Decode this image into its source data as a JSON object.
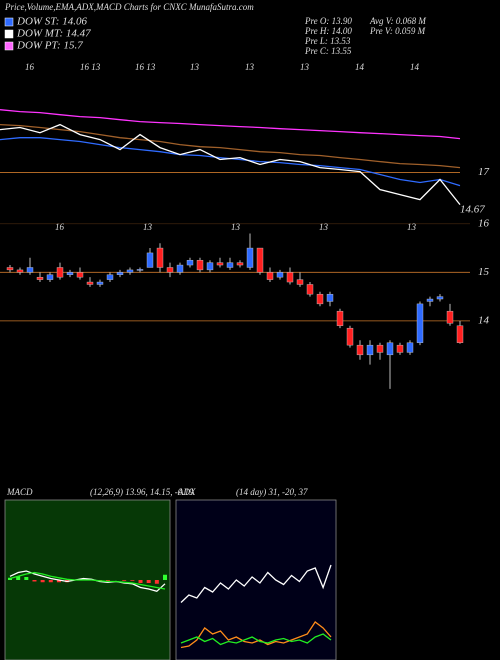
{
  "title": "Price,Volume,EMA,ADX,MACD Charts for CNXC MunafaSutra.com",
  "legend": [
    {
      "label": "DOW ST: 14.06",
      "color": "#2f6bff"
    },
    {
      "label": "DOW MT: 14.47",
      "color": "#ffffff"
    },
    {
      "label": "DOW PT: 15.7",
      "color": "#ff66ff"
    }
  ],
  "stats": [
    "Pre O: 13.90",
    "Pre H: 14.00",
    "Pre L: 13.53",
    "Pre C: 13.55",
    "Avg V: 0.068 M",
    "Pre V: 0.059 M"
  ],
  "chart_data": [
    {
      "type": "line",
      "ylim": [
        14.05,
        24
      ],
      "yticks": [
        17,
        14.67
      ],
      "grid_color": "#c8762a",
      "date_labels": [
        "16",
        "16 13",
        "16 13",
        "13",
        "13",
        "13",
        "14",
        "14"
      ],
      "series": [
        {
          "color": "#ff33ff",
          "values": [
            20.91,
            20.79,
            20.73,
            20.6,
            20.48,
            20.42,
            20.29,
            20.17,
            20.11,
            20.05,
            19.98,
            19.92,
            19.86,
            19.8,
            19.73,
            19.67,
            19.61,
            19.55,
            19.48,
            19.42,
            19.36,
            19.3,
            19.24,
            19.11
          ]
        },
        {
          "color": "#a0602a",
          "values": [
            19.98,
            19.92,
            19.8,
            19.67,
            19.55,
            19.36,
            19.17,
            19.05,
            18.93,
            18.74,
            18.61,
            18.55,
            18.43,
            18.3,
            18.24,
            18.12,
            18.06,
            17.93,
            17.81,
            17.68,
            17.56,
            17.5,
            17.43,
            17.31
          ]
        },
        {
          "color": "#2f6bff",
          "values": [
            19.05,
            19.17,
            19.17,
            19.05,
            18.93,
            18.74,
            18.55,
            18.43,
            18.3,
            18.12,
            18.06,
            17.93,
            17.81,
            17.68,
            17.62,
            17.5,
            17.43,
            17.31,
            17.19,
            16.88,
            16.57,
            16.38,
            16.57,
            16.19
          ]
        },
        {
          "color": "#ffffff",
          "values": [
            19.67,
            19.8,
            19.48,
            19.98,
            19.36,
            19.05,
            18.43,
            19.36,
            18.55,
            18.12,
            18.43,
            17.81,
            17.93,
            17.5,
            17.81,
            17.68,
            17.31,
            17.19,
            17.06,
            15.94,
            15.63,
            15.32,
            16.57,
            15.01
          ]
        }
      ]
    },
    {
      "type": "candlestick",
      "ylim": [
        12.37,
        16.49
      ],
      "yticks": [
        16,
        15,
        14
      ],
      "grid_color": "#c8762a",
      "up_color": "#2f6bff",
      "down_color": "#ff2020",
      "date_labels": [
        "16",
        "13",
        "13",
        "13",
        "13"
      ],
      "open": [
        15.1,
        15.05,
        15.0,
        14.9,
        14.85,
        15.1,
        14.95,
        15.0,
        14.8,
        14.75,
        14.85,
        14.95,
        15.0,
        15.05,
        15.1,
        15.5,
        15.1,
        15.0,
        15.15,
        15.25,
        15.05,
        15.2,
        15.1,
        15.2,
        15.1,
        15.5,
        15.0,
        14.9,
        15.0,
        14.85,
        14.75,
        14.55,
        14.4,
        14.2,
        13.85,
        13.5,
        13.3,
        13.5,
        13.3,
        13.5,
        13.35,
        13.55,
        14.4,
        14.45,
        14.2,
        13.9
      ],
      "high": [
        15.15,
        15.1,
        15.3,
        15.0,
        15.0,
        15.2,
        15.05,
        15.1,
        14.9,
        14.85,
        15.0,
        15.05,
        15.1,
        15.1,
        15.5,
        15.6,
        15.2,
        15.2,
        15.3,
        15.3,
        15.25,
        15.3,
        15.3,
        15.25,
        15.8,
        15.5,
        15.1,
        15.05,
        15.1,
        15.0,
        14.8,
        14.6,
        14.6,
        14.25,
        13.9,
        13.6,
        13.6,
        13.55,
        13.6,
        13.55,
        13.6,
        14.4,
        14.5,
        14.55,
        14.35,
        14.0
      ],
      "low": [
        15.0,
        14.95,
        14.95,
        14.8,
        14.8,
        14.85,
        14.9,
        14.85,
        14.7,
        14.7,
        14.8,
        14.9,
        14.95,
        15.0,
        15.1,
        15.0,
        14.9,
        14.95,
        15.1,
        15.0,
        15.0,
        15.1,
        15.05,
        15.1,
        15.05,
        14.95,
        14.8,
        14.85,
        14.75,
        14.7,
        14.5,
        14.3,
        14.3,
        13.85,
        13.45,
        13.2,
        13.1,
        13.2,
        12.6,
        13.3,
        13.3,
        13.5,
        14.3,
        14.4,
        13.9,
        13.53
      ],
      "close": [
        15.05,
        15.0,
        15.1,
        14.85,
        14.95,
        14.9,
        15.0,
        14.9,
        14.75,
        14.8,
        14.95,
        15.0,
        15.05,
        15.06,
        15.4,
        15.1,
        15.0,
        15.15,
        15.25,
        15.05,
        15.2,
        15.15,
        15.2,
        15.15,
        15.5,
        15.0,
        14.85,
        15.0,
        14.8,
        14.75,
        14.55,
        14.35,
        14.55,
        13.9,
        13.5,
        13.3,
        13.5,
        13.35,
        13.55,
        13.35,
        13.55,
        14.35,
        14.45,
        14.5,
        13.95,
        13.55
      ]
    },
    {
      "type": "macd",
      "label": "MACD",
      "params": "(12,26,9) 13.96, 14.15, -0.19",
      "ylim": [
        -1,
        1
      ],
      "background": "#063806",
      "series": [
        {
          "color": "#ffffff",
          "values": [
            0.05,
            0.1,
            0.12,
            0.08,
            0.05,
            0.02,
            0,
            -0.02,
            0,
            0.02,
            0.01,
            -0.02,
            -0.03,
            -0.02,
            -0.04,
            -0.05,
            -0.1,
            -0.12,
            -0.15,
            -0.05
          ]
        },
        {
          "color": "#22ee22",
          "values": [
            0.02,
            0.05,
            0.08,
            0.1,
            0.08,
            0.05,
            0.03,
            0.01,
            0,
            0,
            0,
            -0.01,
            -0.02,
            -0.02,
            -0.03,
            -0.04,
            -0.06,
            -0.08,
            -0.1,
            -0.12
          ]
        }
      ],
      "histogram": [
        0.03,
        0.05,
        0.04,
        -0.02,
        -0.03,
        -0.03,
        -0.03,
        -0.03,
        0,
        0.02,
        0.01,
        -0.01,
        -0.01,
        0,
        -0.01,
        -0.01,
        -0.04,
        -0.04,
        -0.05,
        0.07
      ]
    },
    {
      "type": "adx",
      "label": "ADX",
      "params": "(14 day) 31, -20, 37",
      "ylim": [
        0,
        100
      ],
      "background": "#000018",
      "series": [
        {
          "color": "#ffffff",
          "values": [
            35,
            40,
            38,
            45,
            42,
            48,
            44,
            50,
            46,
            52,
            48,
            55,
            50,
            47,
            53,
            49,
            56,
            58,
            45,
            60
          ]
        },
        {
          "color": "#ff8c1a",
          "values": [
            5,
            6,
            10,
            18,
            14,
            16,
            10,
            12,
            9,
            8,
            10,
            7,
            9,
            8,
            10,
            12,
            14,
            22,
            18,
            12
          ]
        },
        {
          "color": "#22ee22",
          "values": [
            8,
            10,
            12,
            9,
            11,
            7,
            9,
            8,
            10,
            12,
            9,
            8,
            10,
            11,
            9,
            10,
            8,
            12,
            14,
            10
          ]
        }
      ]
    }
  ]
}
